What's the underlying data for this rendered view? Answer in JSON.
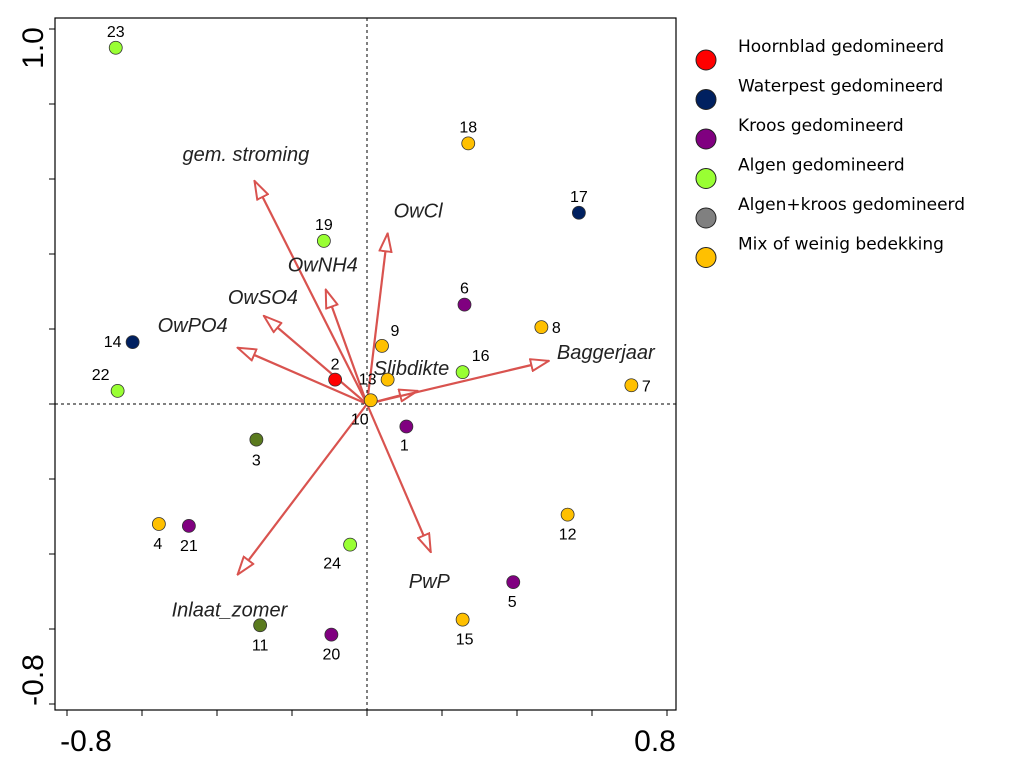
{
  "chart_data": {
    "type": "scatter",
    "xlim": [
      -0.8,
      0.8
    ],
    "ylim": [
      -0.8,
      1.0
    ],
    "x_tick_labels": [
      "-0.8",
      "0.8"
    ],
    "y_tick_labels": [
      "1.0",
      "-0.8"
    ],
    "grid": false,
    "legend_position": "right",
    "groups": [
      {
        "name": "Hoornblad gedomineerd",
        "color": "#ff0000"
      },
      {
        "name": "Waterpest gedomineerd",
        "color": "#002060"
      },
      {
        "name": "Kroos gedomineerd",
        "color": "#800080"
      },
      {
        "name": "Algen gedomineerd",
        "color": "#99ff33"
      },
      {
        "name": "Algen+kroos gedomineerd",
        "color": "#808080"
      },
      {
        "name": "Mix of weinig bedekking",
        "color": "#ffc000"
      }
    ],
    "points": [
      {
        "label": "1",
        "x": 0.105,
        "y": -0.06,
        "group": 2
      },
      {
        "label": "2",
        "x": -0.085,
        "y": 0.065,
        "group": 0
      },
      {
        "label": "3",
        "x": -0.295,
        "y": -0.095,
        "group": 4
      },
      {
        "label": "4",
        "x": -0.555,
        "y": -0.32,
        "group": 5
      },
      {
        "label": "5",
        "x": 0.39,
        "y": -0.475,
        "group": 2
      },
      {
        "label": "6",
        "x": 0.26,
        "y": 0.265,
        "group": 2
      },
      {
        "label": "7",
        "x": 0.705,
        "y": 0.05,
        "group": 5
      },
      {
        "label": "8",
        "x": 0.465,
        "y": 0.205,
        "group": 5
      },
      {
        "label": "9",
        "x": 0.04,
        "y": 0.155,
        "group": 5
      },
      {
        "label": "10",
        "x": 0.01,
        "y": 0.01,
        "group": 5
      },
      {
        "label": "11",
        "x": -0.285,
        "y": -0.59,
        "group": 4
      },
      {
        "label": "12",
        "x": 0.535,
        "y": -0.295,
        "group": 5
      },
      {
        "label": "13",
        "x": 0.055,
        "y": 0.065,
        "group": 5
      },
      {
        "label": "14",
        "x": -0.625,
        "y": 0.165,
        "group": 1
      },
      {
        "label": "15",
        "x": 0.255,
        "y": -0.575,
        "group": 5
      },
      {
        "label": "16",
        "x": 0.255,
        "y": 0.085,
        "group": 3
      },
      {
        "label": "17",
        "x": 0.565,
        "y": 0.51,
        "group": 1
      },
      {
        "label": "18",
        "x": 0.27,
        "y": 0.695,
        "group": 5
      },
      {
        "label": "19",
        "x": -0.115,
        "y": 0.435,
        "group": 3
      },
      {
        "label": "20",
        "x": -0.095,
        "y": -0.615,
        "group": 2
      },
      {
        "label": "21",
        "x": -0.475,
        "y": -0.325,
        "group": 2
      },
      {
        "label": "22",
        "x": -0.665,
        "y": 0.035,
        "group": 3
      },
      {
        "label": "23",
        "x": -0.67,
        "y": 0.95,
        "group": 3
      },
      {
        "label": "24",
        "x": -0.045,
        "y": -0.375,
        "group": 3
      }
    ],
    "vectors": [
      {
        "name": "gem. stroming",
        "x": -0.3,
        "y": 0.595
      },
      {
        "name": "OwCl",
        "x": 0.055,
        "y": 0.455
      },
      {
        "name": "OwNH4",
        "x": -0.11,
        "y": 0.305
      },
      {
        "name": "OwSO4",
        "x": -0.275,
        "y": 0.235
      },
      {
        "name": "OwPO4",
        "x": -0.345,
        "y": 0.15
      },
      {
        "name": "Slibdikte",
        "x": 0.135,
        "y": 0.035
      },
      {
        "name": "Baggerjaar",
        "x": 0.485,
        "y": 0.115
      },
      {
        "name": "PwP",
        "x": 0.17,
        "y": -0.395
      },
      {
        "name": "Inlaat_zomer",
        "x": -0.345,
        "y": -0.455
      }
    ]
  }
}
